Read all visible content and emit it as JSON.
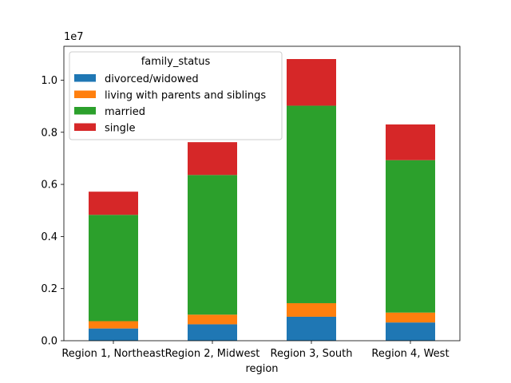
{
  "chart_data": {
    "type": "bar",
    "stacked": true,
    "categories": [
      "Region 1, Northeast",
      "Region 2, Midwest",
      "Region 3, South",
      "Region 4, West"
    ],
    "series": [
      {
        "name": "divorced/widowed",
        "color": "#1f77b4",
        "values": [
          470000,
          630000,
          920000,
          700000
        ]
      },
      {
        "name": "living with parents and siblings",
        "color": "#ff7f0e",
        "values": [
          280000,
          370000,
          520000,
          380000
        ]
      },
      {
        "name": "married",
        "color": "#2ca02c",
        "values": [
          4080000,
          5360000,
          7580000,
          5850000
        ]
      },
      {
        "name": "single",
        "color": "#d62728",
        "values": [
          890000,
          1260000,
          1790000,
          1370000
        ]
      }
    ],
    "xlabel": "region",
    "ylabel": "",
    "ylim": [
      0,
      11300000
    ],
    "yticks": [
      0,
      2000000,
      4000000,
      6000000,
      8000000,
      10000000
    ],
    "ytick_labels": [
      "0.0",
      "0.2",
      "0.4",
      "0.6",
      "0.8",
      "1.0"
    ],
    "offset_text": "1e7",
    "legend": {
      "title": "family_status",
      "placement": "upper-left"
    },
    "grid": false
  }
}
